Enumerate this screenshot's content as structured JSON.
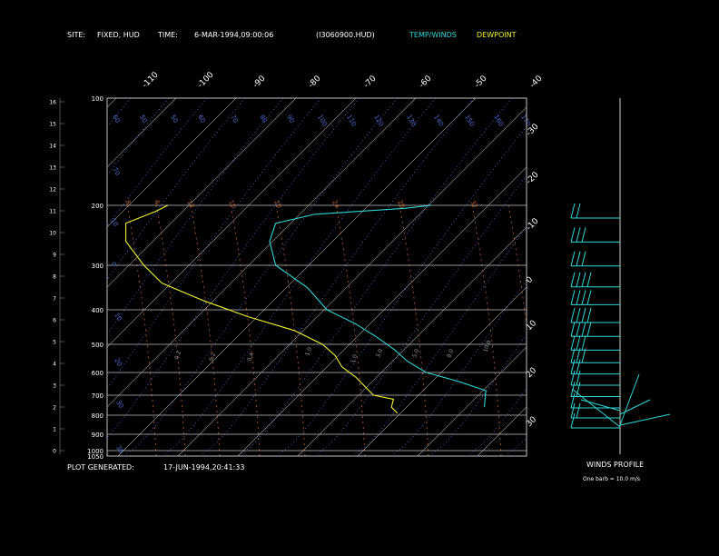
{
  "header": {
    "site_label": "SITE:",
    "site_value": "FIXED, HUD",
    "time_label": "TIME:",
    "time_value": "6-MAR-1994,09:00:06",
    "file_id": "(I3060900.HUD)",
    "legend_temp_winds": "TEMP/WINDS",
    "legend_dewpoint": "DEWPOINT"
  },
  "footer": {
    "generated_label": "PLOT GENERATED:",
    "generated_value": "17-JUN-1994,20:41:33"
  },
  "winds_panel": {
    "title": "WINDS PROFILE",
    "note": "One barb = 10.0 m/s"
  },
  "colors": {
    "background": "#000000",
    "text": "#ffffff",
    "temp_winds": "#2fd6d6",
    "dewpoint": "#f2f230",
    "isotherm": "#a6a6a6",
    "dry_adiabat": "#4f6fd6",
    "mixing_ratio": "#bf5f30",
    "wind_barb": "#2fd6d6"
  },
  "chart_data": {
    "type": "line",
    "xlabel": "",
    "ylabel": "",
    "pressure_levels": [
      100,
      200,
      300,
      400,
      500,
      600,
      700,
      800,
      900,
      1000,
      1050
    ],
    "pressure_tick_labels": [
      "100",
      "200",
      "300",
      "400",
      "500",
      "600",
      "700",
      "800",
      "900",
      "1000",
      "1050"
    ],
    "height_ticks": [
      "0",
      "1",
      "2",
      "3",
      "4",
      "5",
      "6",
      "7",
      "8",
      "9",
      "10",
      "11",
      "12",
      "13",
      "14",
      "15",
      "16"
    ],
    "temperature_range": [
      -110,
      -40
    ],
    "top_temperature_labels": [
      "-110",
      "-100",
      "-90",
      "-80",
      "-70",
      "-60",
      "-50",
      "-40"
    ],
    "right_temperature_labels": [
      "-30",
      "-20",
      "-10",
      "0",
      "10",
      "20",
      "30"
    ],
    "dry_adiabat_labels": [
      "60",
      "50",
      "50",
      "60",
      "70",
      "80",
      "90",
      "100",
      "110",
      "120",
      "130",
      "140",
      "150",
      "160",
      "170"
    ],
    "mixing_ratio_labels": [
      "8",
      "6",
      "12",
      "16",
      "20",
      "24",
      "28",
      "32"
    ],
    "small_mixing_labels": [
      "0.2",
      "0.2",
      "0.4",
      "1.0",
      "1.0",
      "3.0",
      "5.0",
      "8.0",
      "10.0"
    ],
    "series": [
      {
        "key": "temperature",
        "points": [
          [
            760,
            4.5
          ],
          [
            680,
            2
          ],
          [
            640,
            -4
          ],
          [
            600,
            -11
          ],
          [
            560,
            -16
          ],
          [
            520,
            -20
          ],
          [
            480,
            -25
          ],
          [
            440,
            -31
          ],
          [
            400,
            -38
          ],
          [
            350,
            -45
          ],
          [
            300,
            -54
          ],
          [
            260,
            -59
          ],
          [
            230,
            -61
          ],
          [
            215,
            -56
          ],
          [
            205,
            -42
          ],
          [
            200,
            -38
          ]
        ]
      },
      {
        "key": "dewpoint",
        "points": [
          [
            790,
            -9
          ],
          [
            760,
            -11
          ],
          [
            720,
            -12
          ],
          [
            700,
            -16
          ],
          [
            660,
            -19
          ],
          [
            620,
            -22
          ],
          [
            580,
            -26
          ],
          [
            540,
            -29
          ],
          [
            500,
            -33
          ],
          [
            460,
            -40
          ],
          [
            420,
            -50
          ],
          [
            380,
            -60
          ],
          [
            340,
            -70
          ],
          [
            300,
            -76
          ],
          [
            260,
            -83
          ],
          [
            230,
            -86
          ],
          [
            210,
            -83
          ],
          [
            200,
            -82
          ]
        ]
      }
    ],
    "wind_profile": [
      {
        "pressure": 200,
        "barbs": 2
      },
      {
        "pressure": 240,
        "barbs": 3
      },
      {
        "pressure": 280,
        "barbs": 3
      },
      {
        "pressure": 320,
        "barbs": 4
      },
      {
        "pressure": 360,
        "barbs": 4
      },
      {
        "pressure": 400,
        "barbs": 4
      },
      {
        "pressure": 440,
        "barbs": 4
      },
      {
        "pressure": 480,
        "barbs": 3
      },
      {
        "pressure": 520,
        "barbs": 3
      },
      {
        "pressure": 560,
        "barbs": 2
      },
      {
        "pressure": 600,
        "barbs": 2
      },
      {
        "pressure": 650,
        "barbs": 2
      },
      {
        "pressure": 700,
        "barbs": 1
      },
      {
        "pressure": 750,
        "barbs": 2
      },
      {
        "pressure": 800,
        "barbs": 1
      }
    ]
  }
}
